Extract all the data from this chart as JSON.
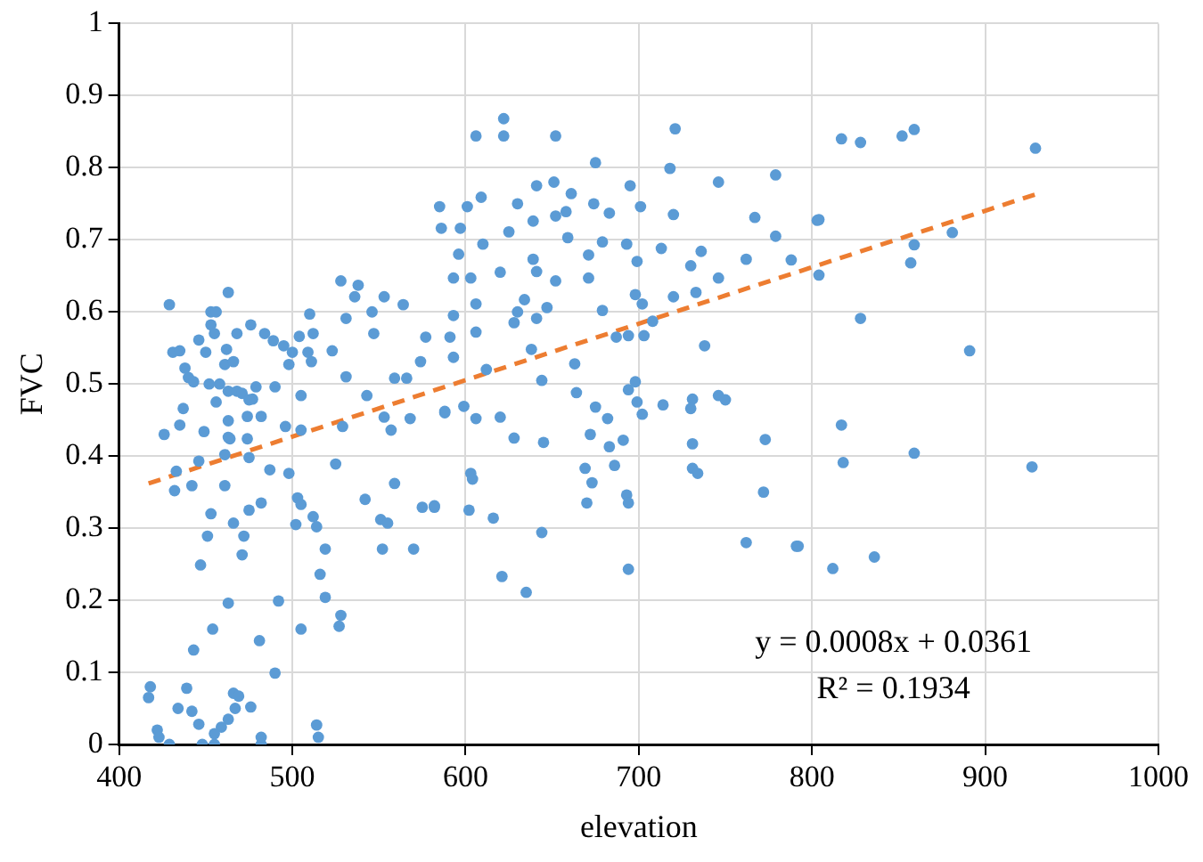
{
  "chart_data": {
    "type": "scatter",
    "xlabel": "elevation",
    "ylabel": "FVC",
    "xlim": [
      400,
      1000
    ],
    "xticks": [
      400,
      500,
      600,
      700,
      800,
      900,
      1000
    ],
    "ylim": [
      0,
      1
    ],
    "yticks": [
      0,
      0.1,
      0.2,
      0.3,
      0.4,
      0.5,
      0.6,
      0.7,
      0.8,
      0.9,
      1
    ],
    "grid": true,
    "marker": "circle",
    "annotations": [
      "y = 0.0008x + 0.0361",
      "R² = 0.1934"
    ],
    "series": [
      {
        "color": "#5b9bd5",
        "x": [
          429,
          463,
          453,
          431,
          435,
          438,
          440,
          443,
          452,
          458,
          463,
          468,
          471,
          479,
          490,
          477,
          461,
          466,
          462,
          446,
          450,
          453,
          456,
          455,
          468,
          476,
          484,
          489,
          495,
          500,
          498,
          509,
          511,
          504,
          528,
          538,
          536,
          553,
          564,
          546,
          547,
          531,
          523,
          510,
          512,
          531,
          543,
          559,
          566,
          574,
          577,
          588,
          568,
          553,
          557,
          529,
          525,
          542,
          559,
          551,
          555,
          575,
          582,
          570,
          552,
          512,
          514,
          503,
          505,
          502,
          519,
          516,
          519,
          528,
          527,
          505,
          492,
          481,
          490,
          463,
          454,
          443,
          447,
          451,
          471,
          472,
          466,
          475,
          482,
          453,
          461,
          442,
          432,
          433,
          446,
          461,
          487,
          498,
          475,
          426,
          435,
          449,
          463,
          464,
          474,
          463,
          474,
          482,
          496,
          505,
          437,
          456,
          475,
          505,
          418,
          417,
          439,
          434,
          442,
          446,
          466,
          469,
          467,
          476,
          463,
          459,
          455,
          422,
          423,
          429,
          448,
          455,
          482,
          482,
          514,
          515,
          622,
          622,
          606,
          652,
          721,
          675,
          718,
          746,
          779,
          651,
          641,
          661,
          695,
          609,
          585,
          601,
          630,
          674,
          701,
          652,
          658,
          639,
          683,
          586,
          597,
          625,
          720,
          767,
          803,
          659,
          779,
          610,
          679,
          693,
          713,
          736,
          596,
          639,
          671,
          699,
          762,
          730,
          788,
          593,
          603,
          620,
          641,
          652,
          671,
          746,
          698,
          733,
          720,
          606,
          634,
          702,
          593,
          630,
          647,
          679,
          641,
          628,
          708,
          606,
          591,
          687,
          694,
          703,
          738,
          593,
          638,
          612,
          663,
          644,
          664,
          694,
          698,
          699,
          702,
          714,
          731,
          730,
          746,
          750,
          675,
          682,
          588,
          599,
          606,
          620,
          628,
          645,
          672,
          683,
          691,
          731,
          773,
          603,
          604,
          669,
          673,
          686,
          731,
          734,
          670,
          693,
          694,
          772,
          602,
          616,
          644,
          762,
          791,
          621,
          635,
          694,
          582,
          817,
          828,
          852,
          859,
          929,
          804,
          881,
          859,
          857,
          804,
          828,
          891,
          817,
          818,
          859,
          927,
          792,
          812,
          836
        ],
        "values": [
          0.61,
          0.627,
          0.6,
          0.544,
          0.546,
          0.522,
          0.509,
          0.503,
          0.5,
          0.5,
          0.49,
          0.49,
          0.487,
          0.496,
          0.496,
          0.479,
          0.527,
          0.531,
          0.548,
          0.561,
          0.544,
          0.582,
          0.6,
          0.57,
          0.57,
          0.582,
          0.57,
          0.56,
          0.553,
          0.544,
          0.527,
          0.544,
          0.531,
          0.566,
          0.643,
          0.637,
          0.621,
          0.621,
          0.61,
          0.6,
          0.57,
          0.591,
          0.546,
          0.597,
          0.57,
          0.51,
          0.484,
          0.508,
          0.508,
          0.531,
          0.565,
          0.46,
          0.452,
          0.454,
          0.436,
          0.441,
          0.389,
          0.34,
          0.362,
          0.312,
          0.307,
          0.329,
          0.329,
          0.271,
          0.271,
          0.316,
          0.302,
          0.342,
          0.333,
          0.305,
          0.271,
          0.236,
          0.204,
          0.179,
          0.164,
          0.16,
          0.199,
          0.144,
          0.099,
          0.196,
          0.16,
          0.131,
          0.249,
          0.289,
          0.263,
          0.289,
          0.307,
          0.325,
          0.335,
          0.32,
          0.359,
          0.359,
          0.352,
          0.379,
          0.393,
          0.402,
          0.381,
          0.376,
          0.398,
          0.43,
          0.443,
          0.434,
          0.426,
          0.424,
          0.424,
          0.449,
          0.455,
          0.455,
          0.441,
          0.436,
          0.466,
          0.475,
          0.478,
          0.484,
          0.08,
          0.065,
          0.078,
          0.05,
          0.046,
          0.028,
          0.071,
          0.067,
          0.05,
          0.052,
          0.035,
          0.024,
          0.015,
          0.02,
          0.01,
          0,
          0,
          0,
          0.01,
          0,
          0.027,
          0.01,
          0.868,
          0.844,
          0.844,
          0.844,
          0.854,
          0.807,
          0.799,
          0.78,
          0.79,
          0.78,
          0.775,
          0.764,
          0.775,
          0.759,
          0.746,
          0.746,
          0.75,
          0.75,
          0.746,
          0.733,
          0.739,
          0.726,
          0.737,
          0.716,
          0.716,
          0.711,
          0.735,
          0.731,
          0.727,
          0.703,
          0.705,
          0.694,
          0.697,
          0.694,
          0.688,
          0.684,
          0.68,
          0.673,
          0.679,
          0.67,
          0.673,
          0.664,
          0.672,
          0.647,
          0.647,
          0.655,
          0.656,
          0.643,
          0.647,
          0.647,
          0.624,
          0.627,
          0.621,
          0.611,
          0.617,
          0.611,
          0.595,
          0.6,
          0.606,
          0.602,
          0.591,
          0.585,
          0.587,
          0.572,
          0.565,
          0.565,
          0.567,
          0.567,
          0.553,
          0.537,
          0.548,
          0.52,
          0.528,
          0.505,
          0.488,
          0.492,
          0.503,
          0.475,
          0.458,
          0.471,
          0.479,
          0.466,
          0.484,
          0.478,
          0.468,
          0.452,
          0.462,
          0.469,
          0.452,
          0.454,
          0.425,
          0.419,
          0.43,
          0.413,
          0.422,
          0.417,
          0.423,
          0.376,
          0.368,
          0.383,
          0.363,
          0.387,
          0.383,
          0.376,
          0.335,
          0.346,
          0.335,
          0.35,
          0.325,
          0.314,
          0.294,
          0.28,
          0.275,
          0.233,
          0.211,
          0.243,
          0.331,
          0.84,
          0.835,
          0.844,
          0.853,
          0.827,
          0.728,
          0.71,
          0.693,
          0.668,
          0.651,
          0.591,
          0.546,
          0.443,
          0.391,
          0.404,
          0.385,
          0.275,
          0.244,
          0.26
        ]
      },
      {
        "type": "line",
        "color": "#ed7d31",
        "line_style": "dashed",
        "marker": "none",
        "x": [
          417,
          929
        ],
        "values": [
          0.362,
          0.763
        ]
      }
    ]
  }
}
